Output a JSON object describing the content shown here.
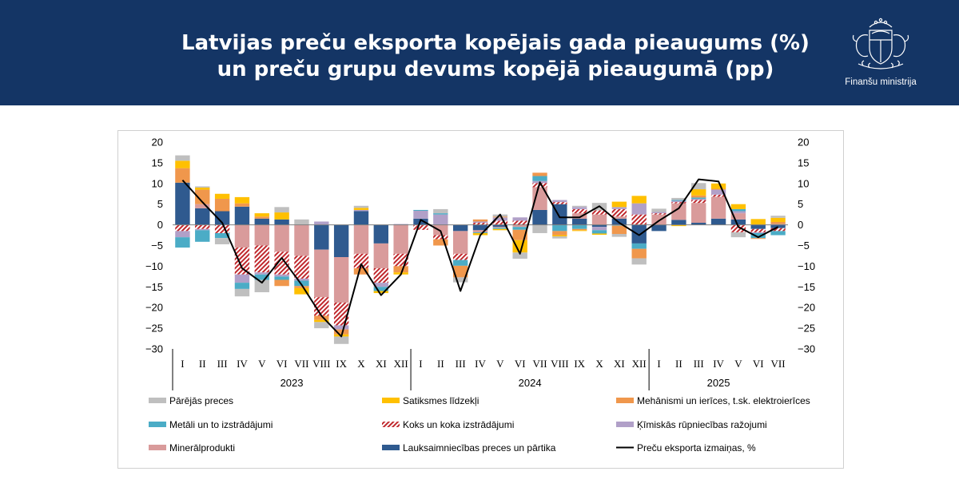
{
  "header": {
    "title_line1": "Latvijas preču eksporta kopējais gada pieaugums (%)",
    "title_line2": "un preču grupu devums kopējā pieaugumā (pp)",
    "org_name": "Finanšu ministrija",
    "logo_icon": "latvia-coat-of-arms-icon",
    "background_color": "#143565"
  },
  "chart_data": {
    "type": "bar",
    "stacked": true,
    "overlay_line": "Preču eksporta izmaiņas, %",
    "categories": [
      "I",
      "II",
      "III",
      "IV",
      "V",
      "VI",
      "VII",
      "VIII",
      "IX",
      "X",
      "XI",
      "XII",
      "I",
      "II",
      "III",
      "IV",
      "V",
      "VI",
      "VII",
      "VIII",
      "IX",
      "X",
      "XI",
      "XII",
      "I",
      "II",
      "III",
      "IV",
      "V",
      "VI",
      "VII"
    ],
    "year_groups": [
      {
        "label": "2023",
        "count": 12
      },
      {
        "label": "2024",
        "count": 12
      },
      {
        "label": "2025",
        "count": 7
      }
    ],
    "ylim": [
      -30,
      20
    ],
    "yticks": [
      20,
      15,
      10,
      5,
      0,
      -5,
      -10,
      -15,
      -20,
      -25,
      -30
    ],
    "grid": false,
    "legend_position": "bottom",
    "series": [
      {
        "name": "Lauksaimniecības preces un pārtika",
        "color": "#2f5a8f",
        "pattern": "solid",
        "values": [
          10.2,
          4.0,
          3.3,
          4.4,
          1.5,
          1.3,
          0.0,
          -6.0,
          -7.8,
          3.3,
          -4.5,
          0.0,
          1.5,
          0.0,
          -1.5,
          -1.3,
          -0.5,
          0.0,
          3.6,
          5.0,
          1.5,
          -0.5,
          1.5,
          -4.5,
          -1.5,
          1.2,
          0.5,
          1.5,
          1.3,
          -1.0,
          -0.8
        ]
      },
      {
        "name": "Minerālprodukti",
        "color": "#d99b9b",
        "pattern": "solid",
        "values": [
          0.0,
          1.0,
          0.0,
          -5.5,
          -5.0,
          -6.5,
          -7.5,
          -11.5,
          -11.0,
          -7.0,
          -6.0,
          -7.0,
          0.0,
          -2.5,
          -5.5,
          -0.5,
          -0.2,
          -0.5,
          5.5,
          0.0,
          1.3,
          2.5,
          0.5,
          0.0,
          2.5,
          4.0,
          4.8,
          5.3,
          1.5,
          0.0,
          0.0
        ]
      },
      {
        "name": "Koks un koka izstrādājumi",
        "color": "#c0282d",
        "pattern": "hatch",
        "values": [
          -1.5,
          -1.0,
          -2.0,
          -6.5,
          -6.5,
          -5.5,
          -5.5,
          -4.5,
          -5.5,
          -3.5,
          -3.5,
          -3.0,
          -1.2,
          -1.0,
          -1.5,
          0.5,
          1.0,
          1.0,
          1.0,
          0.5,
          1.0,
          1.0,
          1.8,
          2.5,
          0.3,
          0.3,
          0.7,
          0.5,
          -1.8,
          -0.8,
          -0.7
        ]
      },
      {
        "name": "Ķīmiskās rūpniecības ražojumi",
        "color": "#b1a0c8",
        "pattern": "solid",
        "values": [
          -1.5,
          -0.3,
          0.0,
          -2.0,
          -0.5,
          -0.5,
          -0.5,
          0.8,
          -1.0,
          0.3,
          -1.0,
          0.2,
          1.9,
          2.5,
          0.0,
          0.3,
          0.8,
          0.8,
          0.5,
          0.5,
          0.5,
          -0.8,
          0.5,
          2.7,
          0.3,
          0.3,
          0.3,
          1.2,
          0.5,
          -0.2,
          0.2
        ]
      },
      {
        "name": "Metāli un to izstrādājumi",
        "color": "#4bacc6",
        "pattern": "solid",
        "values": [
          -2.5,
          -2.8,
          -1.2,
          -1.5,
          -1.3,
          -0.8,
          -1.3,
          0.0,
          0.0,
          0.0,
          -1.0,
          0.0,
          0.2,
          0.3,
          -1.4,
          -0.2,
          -0.3,
          -0.7,
          1.2,
          -1.5,
          -1.0,
          -0.8,
          -0.2,
          -1.3,
          0.0,
          0.2,
          0.3,
          0.0,
          0.5,
          -1.2,
          -1.0
        ]
      },
      {
        "name": "Mehānismi un ierīces, t.sk. elektroierīces",
        "color": "#f0974c",
        "pattern": "solid",
        "values": [
          3.5,
          3.5,
          3.0,
          0.8,
          0.5,
          -1.5,
          -0.5,
          -1.0,
          -1.2,
          -1.5,
          0.0,
          -1.5,
          0.0,
          -1.5,
          -2.8,
          0.5,
          0.2,
          -2.5,
          0.8,
          -1.0,
          -0.3,
          0.0,
          -2.0,
          -2.3,
          0.0,
          0.0,
          0.5,
          0.2,
          0.0,
          -0.2,
          0.5
        ]
      },
      {
        "name": "Satiksmes līdzekļi",
        "color": "#ffc000",
        "pattern": "solid",
        "values": [
          1.8,
          0.5,
          1.2,
          1.5,
          0.8,
          1.7,
          -1.5,
          -0.5,
          -0.5,
          0.5,
          -0.5,
          -0.5,
          0.0,
          0.0,
          0.0,
          -0.5,
          -0.3,
          -3.0,
          0.0,
          -0.3,
          -0.2,
          -0.3,
          1.3,
          1.8,
          0.0,
          -0.3,
          1.5,
          1.3,
          1.2,
          1.4,
          1.0
        ]
      },
      {
        "name": "Pārējās preces",
        "color": "#bfbfbf",
        "pattern": "solid",
        "values": [
          1.3,
          0.3,
          -1.5,
          -1.8,
          -3.0,
          1.3,
          1.3,
          -1.5,
          -1.8,
          0.5,
          0.0,
          0.0,
          0.0,
          1.0,
          -1.2,
          0.0,
          0.5,
          -1.5,
          -2.0,
          -0.5,
          0.3,
          1.8,
          -0.7,
          -1.5,
          0.8,
          0.5,
          1.5,
          0.0,
          -1.2,
          0.0,
          0.5
        ]
      }
    ],
    "line": {
      "name": "Preču eksporta izmaiņas, %",
      "color": "#000000",
      "values": [
        10.8,
        5.5,
        0.5,
        -10.5,
        -14.0,
        -8.0,
        -14.5,
        -22.0,
        -27.0,
        -9.5,
        -17.0,
        -12.0,
        1.2,
        -1.5,
        -16.0,
        -2.5,
        2.5,
        -7.0,
        10.3,
        1.8,
        1.8,
        4.5,
        0.5,
        -2.5,
        1.0,
        4.0,
        11.0,
        10.5,
        -0.5,
        -3.0,
        -0.5
      ]
    },
    "legend_order": [
      "Pārējās preces",
      "Satiksmes līdzekļi",
      "Mehānismi un ierīces, t.sk. elektroierīces",
      "Metāli un to izstrādājumi",
      "Koks un koka izstrādājumi",
      "Ķīmiskās rūpniecības ražojumi",
      "Minerālprodukti",
      "Lauksaimniecības preces un pārtika",
      "Preču eksporta izmaiņas, %"
    ]
  }
}
